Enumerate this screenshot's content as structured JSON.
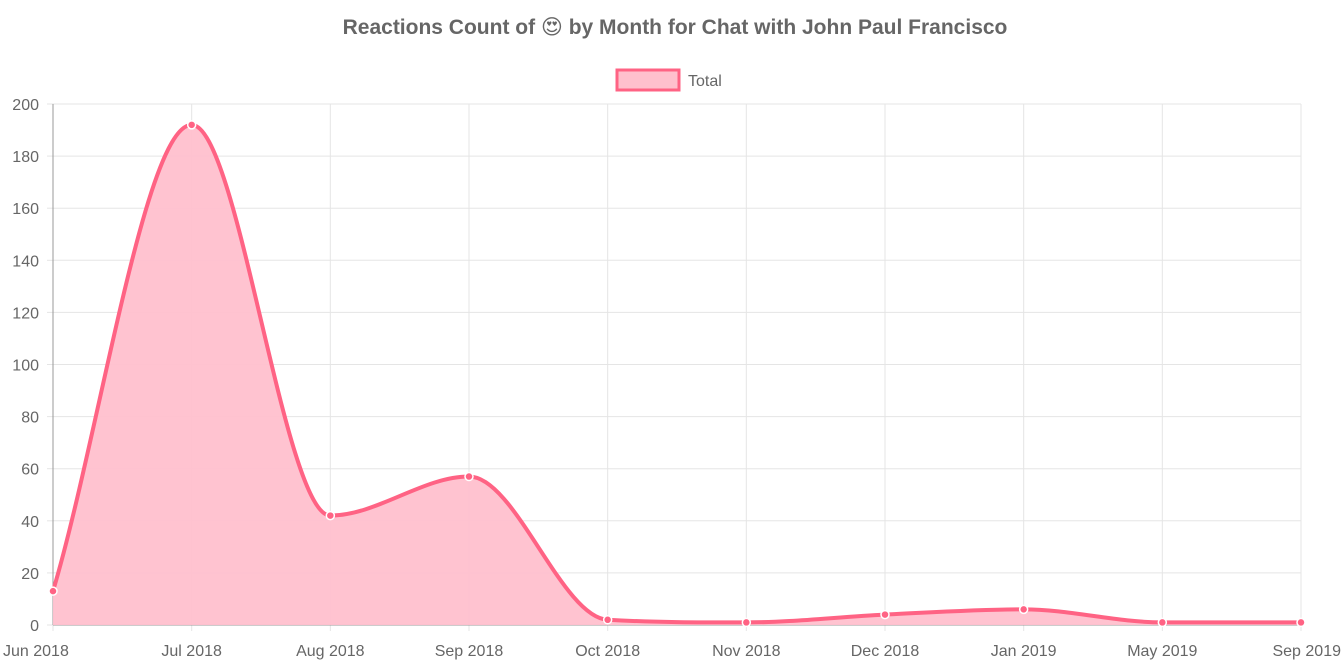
{
  "chart_data": {
    "type": "area",
    "title_prefix": "Reactions Count of",
    "title_emoji": "😍",
    "title_suffix": "by Month for Chat with John Paul Francisco",
    "categories": [
      "Jun 2018",
      "Jul 2018",
      "Aug 2018",
      "Sep 2018",
      "Oct 2018",
      "Nov 2018",
      "Dec 2018",
      "Jan 2019",
      "May 2019",
      "Sep 2019"
    ],
    "series": [
      {
        "name": "Total",
        "values": [
          13,
          192,
          42,
          57,
          2,
          1,
          4,
          6,
          1,
          1
        ]
      }
    ],
    "ylim": [
      0,
      200
    ],
    "yticks": [
      0,
      20,
      40,
      60,
      80,
      100,
      120,
      140,
      160,
      180,
      200
    ],
    "grid": true,
    "legend_position": "top-center",
    "colors": {
      "line": "#ff6384",
      "fill": "#ffc0cd",
      "grid": "#e5e5e5",
      "axis": "#999999",
      "text": "#666666"
    }
  }
}
